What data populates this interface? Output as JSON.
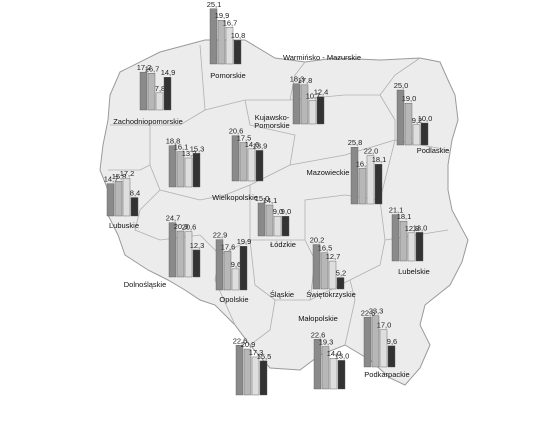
{
  "chart_data": {
    "type": "bar",
    "series_colors": [
      "#8a8a8a",
      "#b7b7b7",
      "#dedede",
      "#333333"
    ],
    "regions": [
      {
        "name": "Zachodniopomorskie",
        "values": [
          17.2,
          16.7,
          7.8,
          14.9
        ]
      },
      {
        "name": "Pomorskie",
        "values": [
          25.1,
          19.9,
          16.7,
          10.8
        ]
      },
      {
        "name": "Warmińsko - Mazurskie",
        "values": [
          18.3,
          17.8,
          10.7,
          12.4
        ]
      },
      {
        "name": "Podlaskie",
        "values": [
          25.0,
          19.0,
          9.2,
          10.0
        ]
      },
      {
        "name": "Kujawsko-Pomorskie",
        "values": [
          20.6,
          17.5,
          14.6,
          13.9
        ]
      },
      {
        "name": "Mazowieckie",
        "values": [
          25.8,
          16.2,
          22.0,
          18.1
        ]
      },
      {
        "name": "Wielkopolskie",
        "values": [
          18.8,
          16.1,
          13.2,
          15.3
        ]
      },
      {
        "name": "Lubuskie",
        "values": [
          14.7,
          15.8,
          17.2,
          8.4
        ]
      },
      {
        "name": "Łódzkie",
        "values": [
          15.0,
          14.1,
          9.0,
          9.0
        ]
      },
      {
        "name": "Dolnośląskie",
        "values": [
          24.7,
          20.9,
          20.6,
          12.3
        ]
      },
      {
        "name": "Opolskie",
        "values": [
          22.9,
          17.6,
          9.6,
          19.9
        ]
      },
      {
        "name": "Śląskie",
        "values": [
          22.6,
          20.9,
          17.3,
          15.5
        ]
      },
      {
        "name": "Świętokrzyskie",
        "values": [
          20.2,
          16.5,
          12.7,
          5.2
        ]
      },
      {
        "name": "Lubelskie",
        "values": [
          21.1,
          18.1,
          12.8,
          13.0
        ]
      },
      {
        "name": "Małopolskie",
        "values": [
          22.6,
          19.3,
          14.0,
          13.0
        ]
      },
      {
        "name": "Podkarpackie",
        "values": [
          22.6,
          23.3,
          17.0,
          9.6
        ]
      }
    ]
  }
}
